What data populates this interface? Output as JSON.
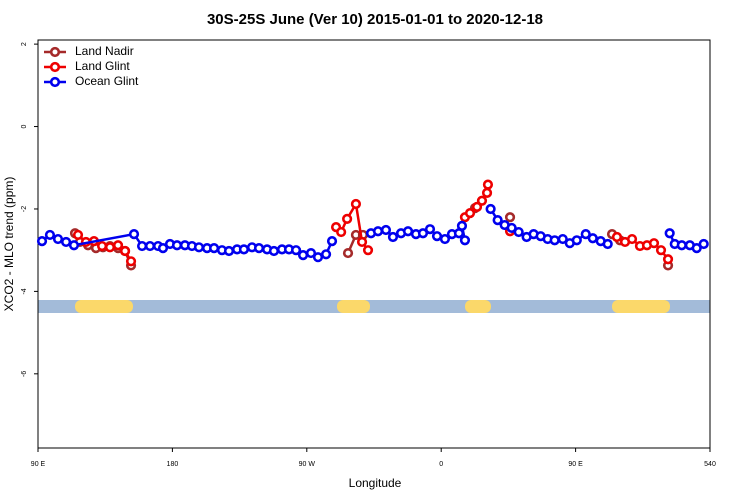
{
  "chart_data": {
    "type": "line",
    "title": "30S-25S June (Ver 10)   2015-01-01 to 2020-12-18",
    "x_label": "Longitude",
    "y_label": "XCO2 - MLO trend (ppm)",
    "xlim": [
      90,
      540
    ],
    "ylim": [
      -7.8,
      2.1
    ],
    "xticks": [
      {
        "value": 90,
        "label": "90 E"
      },
      180,
      {
        "value": 270,
        "label": "90 W"
      },
      {
        "value": 360,
        "label": "0"
      },
      {
        "value": 450,
        "label": "90 E"
      },
      540
    ],
    "yticks": [
      2,
      0,
      -2,
      -4,
      -6
    ],
    "legend": "top-left",
    "series": [
      {
        "name": "Land Nadir",
        "color": "#a52a2a",
        "x": [
          114.8,
          118.1,
          123.5,
          128.8,
          133.5,
          138.2,
          143.6,
          148.3,
          152.3,
          250,
          297.6,
          302.9,
          307.6,
          340,
          382.6,
          384,
          406.1,
          450,
          474.4,
          479.7,
          500,
          511.9
        ],
        "values": [
          -2.59,
          -2.8,
          -2.88,
          -2.95,
          -2.93,
          -2.9,
          -2.95,
          -3.02,
          -3.37,
          null,
          -3.07,
          -2.63,
          -2.63,
          null,
          -1.98,
          null,
          -2.2,
          null,
          -2.61,
          -2.76,
          null,
          -3.37
        ]
      },
      {
        "name": "Land Glint",
        "color": "#ee0000",
        "x": [
          116.8,
          122.1,
          127.5,
          132.9,
          138.2,
          143.6,
          148.3,
          152.3,
          250,
          289.6,
          293,
          297,
          302.9,
          307,
          311,
          340,
          375.9,
          379.3,
          384,
          387.3,
          390.7,
          391.3,
          400,
          406.1,
          450,
          477.7,
          483.1,
          487.8,
          493.1,
          497.8,
          502.5,
          507.2,
          511.9
        ],
        "values": [
          -2.63,
          -2.8,
          -2.78,
          -2.9,
          -2.93,
          -2.88,
          -3.02,
          -3.27,
          null,
          -2.44,
          -2.56,
          -2.24,
          -1.88,
          -2.8,
          -3.0,
          null,
          -2.2,
          -2.1,
          -1.95,
          -1.8,
          -1.61,
          -1.41,
          null,
          -2.54,
          null,
          -2.68,
          -2.8,
          -2.73,
          -2.9,
          -2.88,
          -2.83,
          -3.0,
          -3.22
        ]
      },
      {
        "name": "Ocean Glint",
        "color": "#0000ee",
        "x": [
          92.7,
          98.0,
          103.4,
          108.8,
          114.1,
          154.3,
          159.7,
          165,
          170.4,
          173.7,
          178.4,
          183.1,
          188.4,
          193.1,
          197.8,
          203.2,
          207.9,
          213.2,
          217.9,
          223.3,
          227.9,
          233.3,
          238,
          243.4,
          248,
          253.4,
          258.1,
          262.8,
          267.5,
          272.8,
          277.5,
          282.9,
          286.9,
          300,
          313,
          317.7,
          323,
          327.7,
          333.1,
          337.8,
          343.1,
          347.8,
          352.5,
          357.2,
          362.5,
          367.2,
          371.9,
          373.9,
          375.9,
          385,
          393.1,
          397.8,
          402.5,
          407.2,
          411.9,
          417.2,
          421.9,
          426.6,
          431.3,
          436,
          441.4,
          446.1,
          450.8,
          456.8,
          461.5,
          466.8,
          471.5,
          500,
          513,
          516.4,
          521.1,
          526.5,
          531.1,
          535.8
        ],
        "values": [
          -2.78,
          -2.63,
          -2.73,
          -2.8,
          -2.88,
          -2.61,
          -2.9,
          -2.9,
          -2.9,
          -2.95,
          -2.85,
          -2.88,
          -2.88,
          -2.9,
          -2.93,
          -2.95,
          -2.95,
          -3.0,
          -3.02,
          -2.98,
          -2.98,
          -2.93,
          -2.95,
          -2.98,
          -3.02,
          -2.98,
          -2.98,
          -3.0,
          -3.12,
          -3.07,
          -3.17,
          -3.1,
          -2.78,
          null,
          -2.59,
          -2.54,
          -2.51,
          -2.68,
          -2.59,
          -2.54,
          -2.61,
          -2.59,
          -2.49,
          -2.66,
          -2.73,
          -2.61,
          -2.59,
          -2.41,
          -2.76,
          null,
          -2.0,
          -2.27,
          -2.39,
          -2.46,
          -2.56,
          -2.68,
          -2.61,
          -2.66,
          -2.73,
          -2.76,
          -2.73,
          -2.83,
          -2.76,
          -2.61,
          -2.71,
          -2.78,
          -2.85,
          null,
          -2.59,
          -2.85,
          -2.88,
          -2.88,
          -2.95,
          -2.85
        ]
      }
    ]
  }
}
